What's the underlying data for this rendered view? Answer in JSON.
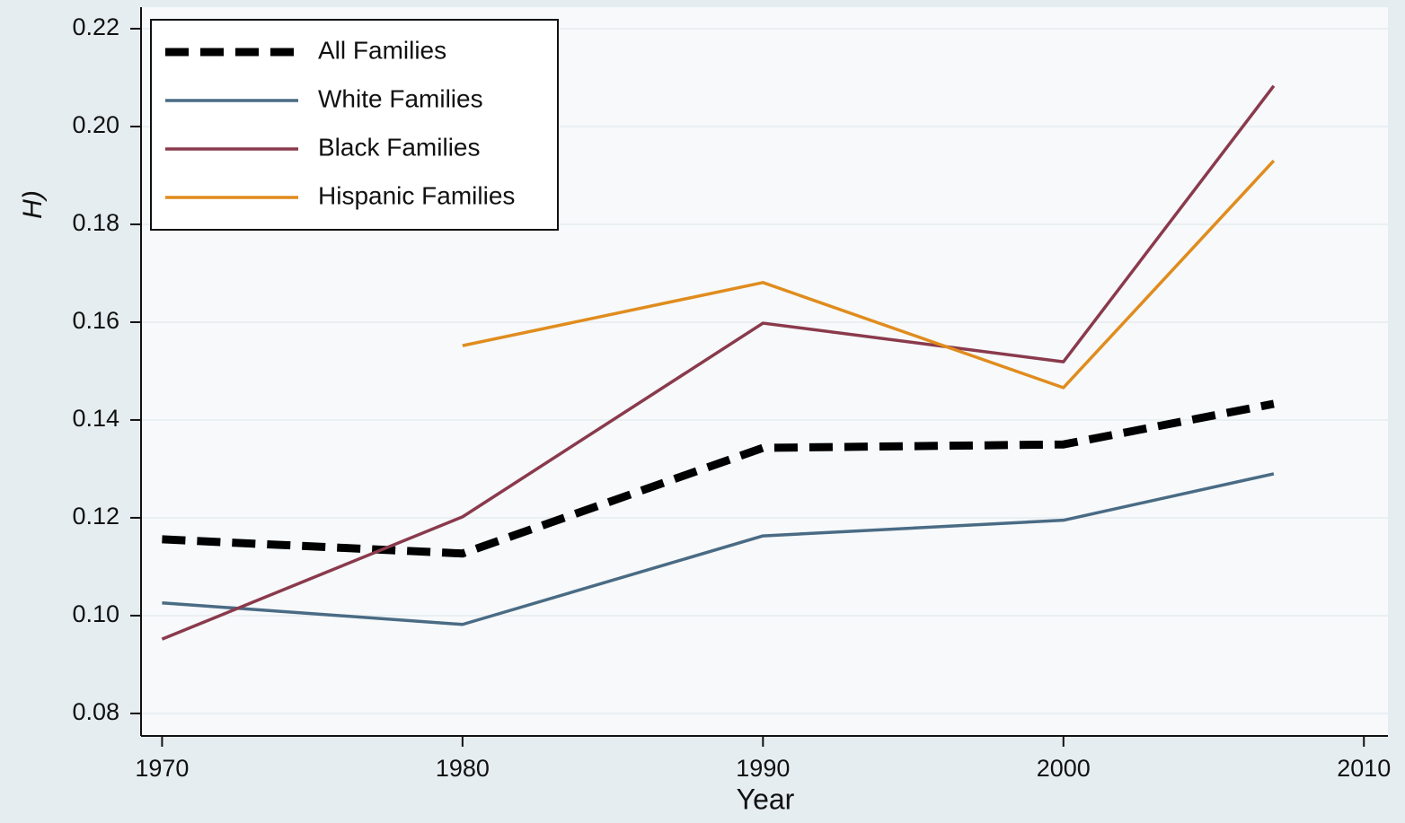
{
  "chart_data": {
    "type": "line",
    "y_label": "H)",
    "x_label": "Year",
    "x": [
      1970,
      1980,
      1990,
      2000,
      2007
    ],
    "series": [
      {
        "name": "All Families",
        "color": "#000000",
        "style": "dashed",
        "values": [
          0.1156,
          0.1127,
          0.1343,
          0.135,
          0.1433
        ]
      },
      {
        "name": "White Families",
        "color": "#4a6b84",
        "style": "solid",
        "values": [
          0.1026,
          0.0982,
          0.1163,
          0.1195,
          0.129
        ]
      },
      {
        "name": "Black Families",
        "color": "#8a3a4c",
        "style": "solid",
        "values": [
          0.0952,
          0.1202,
          0.1598,
          0.1519,
          0.2083
        ]
      },
      {
        "name": "Hispanic Families",
        "color": "#e08c1e",
        "style": "solid",
        "values": [
          null,
          0.1552,
          0.1681,
          0.1466,
          0.193
        ]
      }
    ],
    "xlim": [
      1969.3,
      2010.8
    ],
    "xticks": [
      1970,
      1980,
      1990,
      2000,
      2010
    ],
    "ylim": [
      0.0754,
      0.2244
    ],
    "yticks": [
      0.08,
      {
        "value": 0.1,
        "label": "0.10"
      },
      0.12,
      0.14,
      0.16,
      0.18,
      {
        "value": 0.2,
        "label": "0.20"
      },
      0.22
    ],
    "grid": true,
    "legend": "top-left"
  }
}
